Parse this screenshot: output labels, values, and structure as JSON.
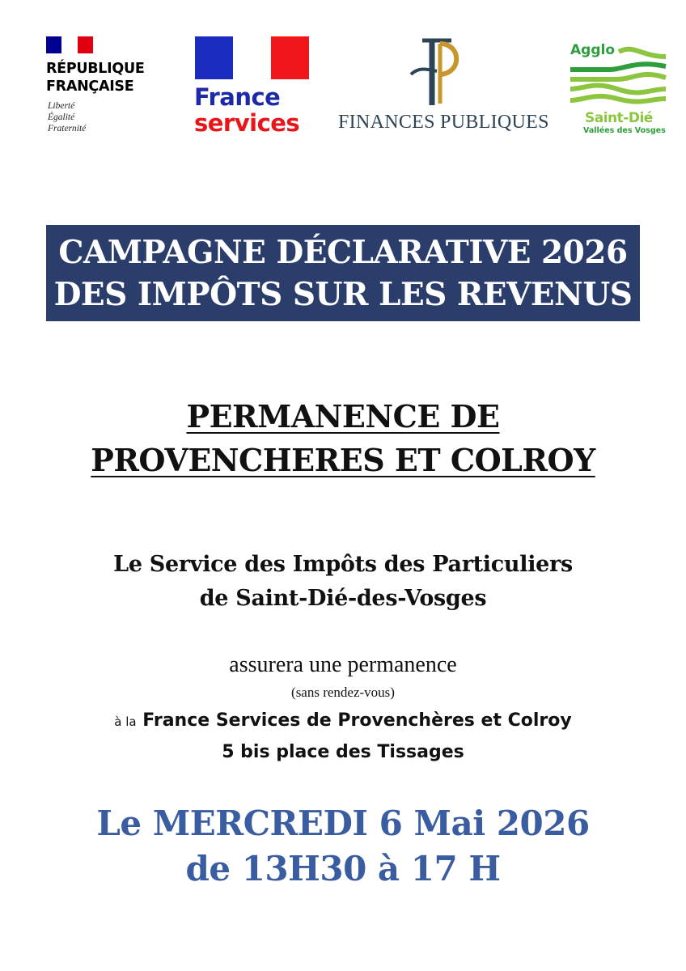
{
  "logos": {
    "republique": {
      "name_line1": "RÉPUBLIQUE",
      "name_line2": "FRANÇAISE",
      "motto": [
        "Liberté",
        "Égalité",
        "Fraternité"
      ]
    },
    "france_services": {
      "line1": "France",
      "line2": "services"
    },
    "finances_publiques": {
      "text": "FINANCES PUBLIQUES"
    },
    "agglo": {
      "top": "Agglo",
      "name": "Saint-Dié",
      "sub": "Vallées des Vosges"
    }
  },
  "colors": {
    "banner": "#2b3d6a",
    "date": "#3a5ca0",
    "flag_blue": "#000091",
    "flag_red": "#e1000f",
    "agglo_green": "#8cc63f"
  },
  "banner": {
    "line1": "CAMPAGNE DÉCLARATIVE 2026",
    "line2": "DES IMPÔTS SUR LES REVENUS"
  },
  "permanence": {
    "line1": "PERMANENCE DE",
    "line2": "PROVENCHERES ET COLROY"
  },
  "service": {
    "line1": "Le Service des Impôts des Particuliers",
    "line2": "de Saint-Dié-des-Vosges"
  },
  "details": {
    "assurera": "assurera une permanence",
    "sans_rdv": "(sans rendez-vous)",
    "a_la": "à la",
    "lieu": "France Services de Provenchères et Colroy",
    "adresse": "5 bis place des Tissages"
  },
  "date": {
    "line1": "Le MERCREDI 6 Mai 2026",
    "line2": "de 13H30 à 17 H"
  }
}
